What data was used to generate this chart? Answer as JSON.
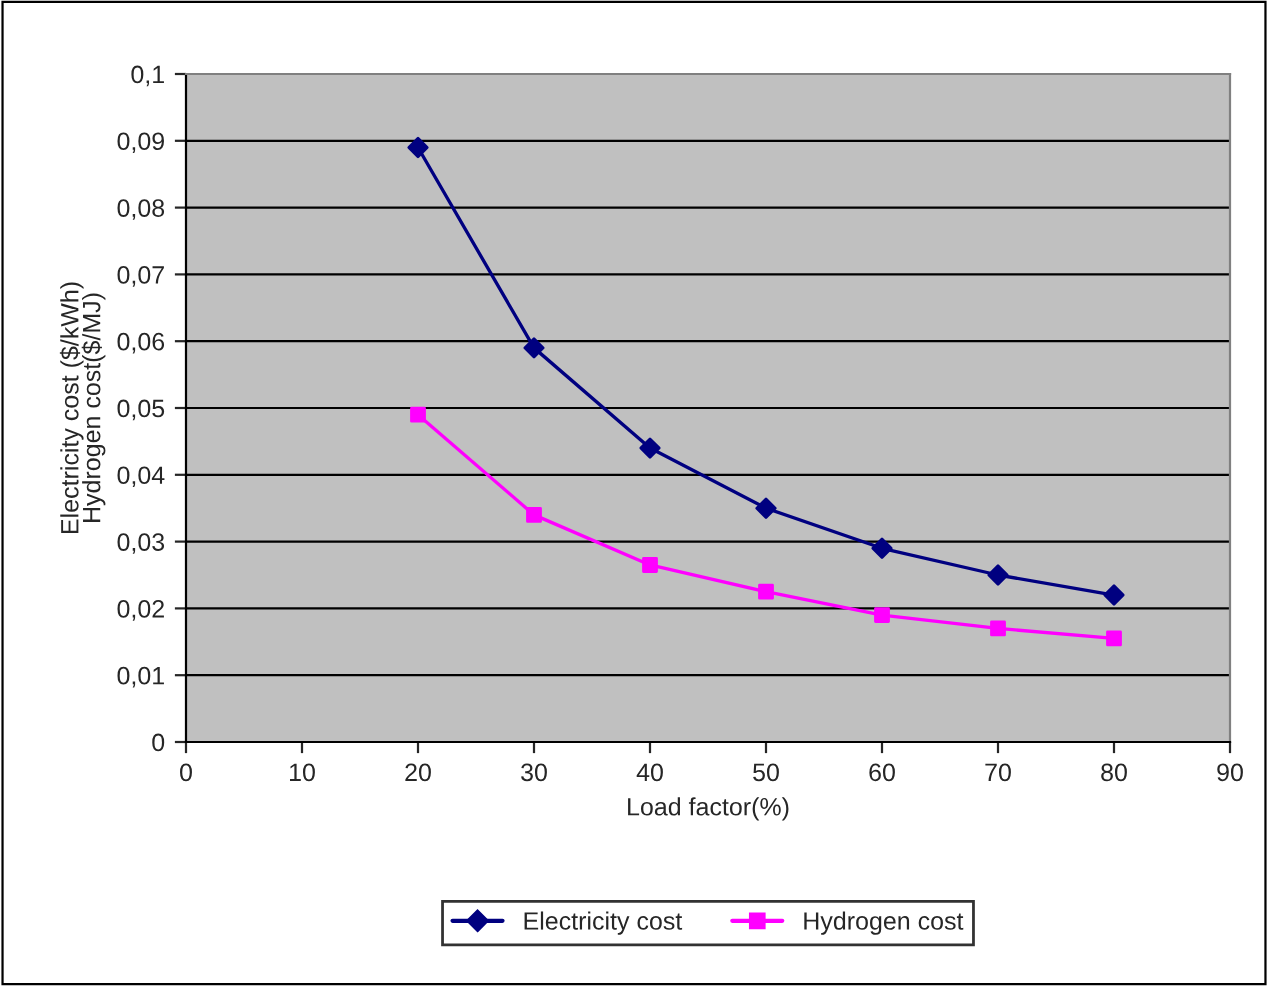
{
  "chart_data": {
    "type": "line",
    "xlabel": "Load factor(%)",
    "ylabel": "Electricity cost ($/kWh)\nHydrogen cost($/MJ)",
    "x": [
      20,
      30,
      40,
      50,
      60,
      70,
      80
    ],
    "series": [
      {
        "name": "Electricity cost",
        "color": "#000080",
        "marker": "diamond",
        "values": [
          0.089,
          0.059,
          0.044,
          0.035,
          0.029,
          0.025,
          0.022
        ]
      },
      {
        "name": "Hydrogen cost",
        "color": "#ff00ff",
        "marker": "square",
        "values": [
          0.049,
          0.034,
          0.0265,
          0.0225,
          0.019,
          0.017,
          0.0155
        ]
      }
    ],
    "xlim": [
      0,
      90
    ],
    "xticks": [
      0,
      10,
      20,
      30,
      40,
      50,
      60,
      70,
      80,
      90
    ],
    "ylim": [
      0,
      0.1
    ],
    "yticks": [
      {
        "value": 0,
        "label": "0"
      },
      {
        "value": 0.01,
        "label": "0,01"
      },
      {
        "value": 0.02,
        "label": "0,02"
      },
      {
        "value": 0.03,
        "label": "0,03"
      },
      {
        "value": 0.04,
        "label": "0,04"
      },
      {
        "value": 0.05,
        "label": "0,05"
      },
      {
        "value": 0.06,
        "label": "0,06"
      },
      {
        "value": 0.07,
        "label": "0,07"
      },
      {
        "value": 0.08,
        "label": "0,08"
      },
      {
        "value": 0.09,
        "label": "0,09"
      },
      {
        "value": 0.1,
        "label": "0,1"
      }
    ],
    "grid": "y",
    "legend": "bottom",
    "line_style": "solid"
  }
}
